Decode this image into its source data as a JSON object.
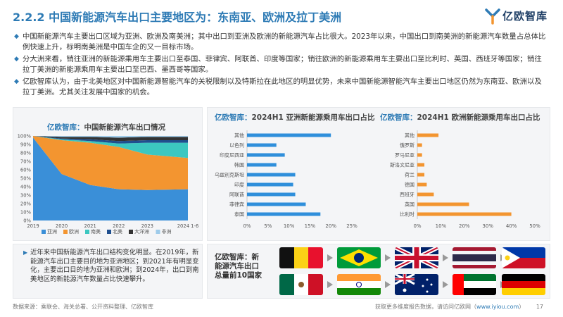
{
  "header": {
    "title": "2.2.2 中国新能源汽车出口主要地区为：东南亚、欧洲及拉丁美洲",
    "logo_text": "亿欧智库"
  },
  "bullets": [
    "中国新能源汽车主要出口区域为亚洲、欧洲及南美洲；其中出口到亚洲及欧洲的新能源汽车占比很大。2023年以来，中国出口到南美洲的新能源汽车数量占总体比例快速上升，标明南美洲是中国车企的又一目标市场。",
    "分大洲来看，销往亚洲的新能源乘用车主要出口至泰国、菲律宾、阿联酋、印度等国家；销往欧洲的新能源乘用车主要出口至比利时、英国、西班牙等国家；销往拉丁美洲的新能源乘用车主要出口至巴西、墨西哥等国家。",
    "亿欧智库认为，由于北美地区对中国新能源智能汽车的关税限制以及特斯拉在此地区的明显优势，未来中国新能源智能汽车主要出口地区仍然为东南亚、欧洲以及拉丁美洲。尤其关注发展中国家的机会。"
  ],
  "left_panel": {
    "brand": "亿欧智库：",
    "title": "中国新能源汽车出口情况"
  },
  "mid_panel": {
    "asia_brand": "亿欧智库：",
    "asia_title": "2024H1 亚洲新能源乘用车出口占比",
    "europe_brand": "亿欧智库：",
    "europe_title": "2024H1 欧洲新能源乘用车出口占比"
  },
  "note": "近年来中国新能源汽车出口结构变化明显。在2019年，新能源汽车出口主要目的地为亚洲地区；到2021年有明显变化，主要出口目的地为亚洲和欧洲；到2024年，出口到南美地区的新能源汽车数量占比快速攀升。",
  "flags_panel": {
    "label": "亿欧智库：新能源汽车出口总量前10国家"
  },
  "footer": {
    "source": "数据来源：乘联会、海关总署、公开资料整理、亿欧智库",
    "more_prefix": "获取更多维度报告数据，请访问亿欧网（",
    "more_link": "www.iyiou.com",
    "more_suffix": "）",
    "page": "17"
  },
  "colors": {
    "asia": "#3a8fd8",
    "europe": "#f39530",
    "south_america": "#3cc7c0",
    "north_america": "#1f4f8f",
    "oceania": "#333333",
    "africa": "#9ecbea",
    "asia_bar": "#2f8fdb",
    "europe_bar": "#f39530"
  },
  "chart_data": [
    {
      "type": "area",
      "stacked": true,
      "x": [
        2019,
        2020,
        2021,
        2022,
        2023,
        2024.42
      ],
      "xticks": [
        "2019",
        "2020",
        "2021",
        "2022",
        "2023",
        "2024 1-6"
      ],
      "yticks": [
        "0%",
        "10%",
        "20%",
        "30%",
        "40%",
        "50%",
        "60%",
        "70%",
        "80%",
        "90%",
        "100%"
      ],
      "ylim": [
        0,
        100
      ],
      "legend_position": "bottom",
      "series": [
        {
          "name": "亚洲",
          "values": [
            98,
            55,
            42,
            37,
            36,
            37
          ]
        },
        {
          "name": "欧洲",
          "values": [
            2,
            40,
            50,
            50,
            42,
            37
          ]
        },
        {
          "name": "南美",
          "values": [
            0,
            1,
            2,
            4,
            14,
            18
          ]
        },
        {
          "name": "北美",
          "values": [
            0,
            1,
            2,
            3,
            3,
            3
          ]
        },
        {
          "name": "大洋洲",
          "values": [
            0,
            2,
            3,
            4,
            4,
            4
          ]
        },
        {
          "name": "非洲",
          "values": [
            0,
            1,
            1,
            2,
            1,
            1
          ]
        }
      ]
    },
    {
      "type": "bar",
      "orientation": "horizontal",
      "categories": [
        "其他",
        "以色列",
        "印度尼西亚",
        "韩国",
        "乌兹别克斯坦",
        "印度",
        "阿联酋",
        "菲律宾",
        "泰国"
      ],
      "values": [
        20,
        7,
        9,
        7,
        11.5,
        11,
        11.5,
        14,
        17.5
      ],
      "xticks": [
        "0%",
        "5%",
        "10%",
        "15%",
        "20%",
        "25%"
      ],
      "xlim": [
        0,
        25
      ]
    },
    {
      "type": "bar",
      "orientation": "horizontal",
      "categories": [
        "其他",
        "俄罗斯",
        "罗马尼亚",
        "斯洛文尼亚",
        "荷兰",
        "德国",
        "西班牙",
        "英国",
        "比利时"
      ],
      "values": [
        9,
        2,
        2,
        3,
        3,
        4,
        7,
        22,
        40
      ],
      "xticks": [
        "0%",
        "10%",
        "20%",
        "30%",
        "40%",
        "50%"
      ],
      "xlim": [
        0,
        50
      ]
    }
  ],
  "flags": [
    {
      "name": "belgium-flag"
    },
    {
      "name": "brazil-flag"
    },
    {
      "name": "uk-flag"
    },
    {
      "name": "thailand-flag"
    },
    {
      "name": "philippines-flag"
    },
    {
      "name": "mexico-flag"
    },
    {
      "name": "india-flag"
    },
    {
      "name": "australia-flag"
    },
    {
      "name": "uae-flag"
    },
    {
      "name": "germany-flag"
    }
  ]
}
